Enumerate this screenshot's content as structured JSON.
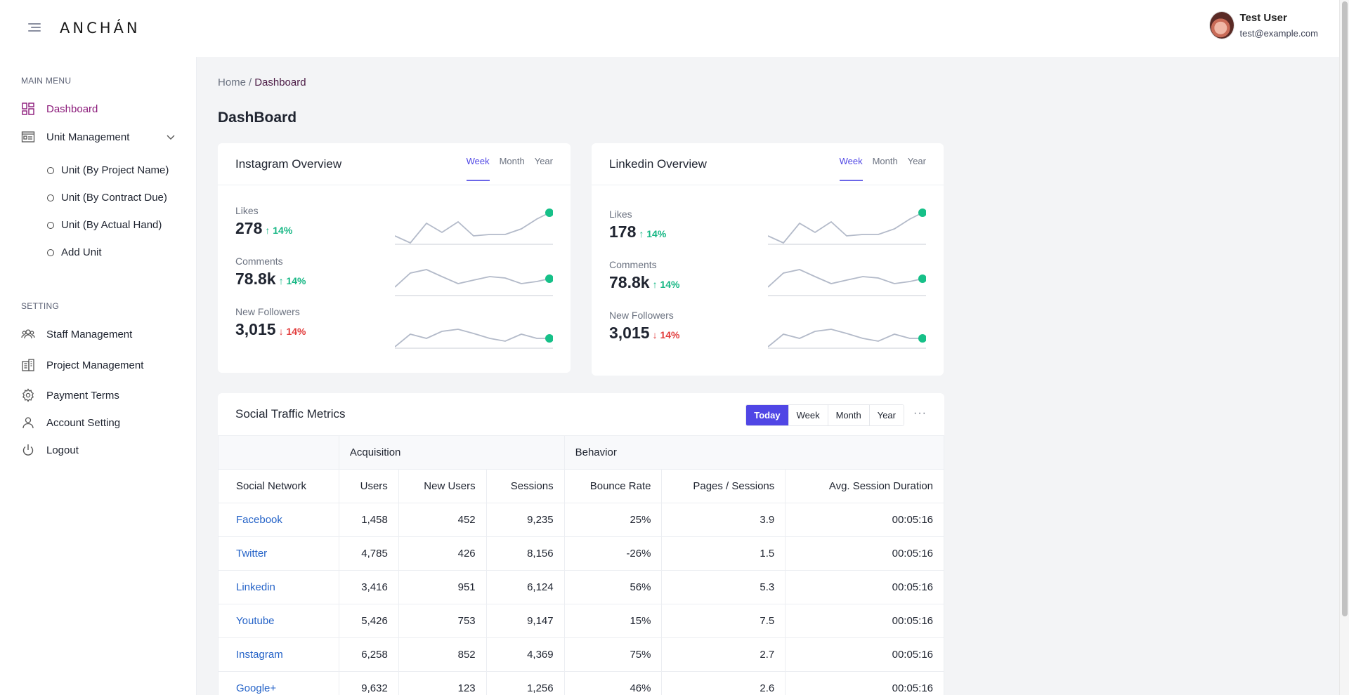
{
  "header": {
    "logo": "ANCHÁN",
    "user_name": "Test User",
    "user_email": "test@example.com"
  },
  "sidebar": {
    "main_menu_title": "MAIN MENU",
    "dashboard": "Dashboard",
    "unit_management": "Unit Management",
    "unit_sub": [
      "Unit (By Project Name)",
      "Unit (By Contract Due)",
      "Unit (By Actual Hand)",
      "Add Unit"
    ],
    "setting_title": "SETTING",
    "staff_management": "Staff Management",
    "project_management": "Project Management",
    "payment_terms": "Payment Terms",
    "account_setting": "Account Setting",
    "logout": "Logout"
  },
  "breadcrumb": {
    "home": "Home",
    "sep": "/",
    "current": "Dashboard"
  },
  "page_title": "DashBoard",
  "instagram": {
    "title": "Instagram Overview",
    "tabs": [
      "Week",
      "Month",
      "Year"
    ],
    "metrics": [
      {
        "label": "Likes",
        "value": "278",
        "dir": "up",
        "delta": "14%"
      },
      {
        "label": "Comments",
        "value": "78.8k",
        "dir": "up",
        "delta": "14%"
      },
      {
        "label": "New Followers",
        "value": "3,015",
        "dir": "down",
        "delta": "14%"
      }
    ]
  },
  "linkedin": {
    "title": "Linkedin Overview",
    "tabs": [
      "Week",
      "Month",
      "Year"
    ],
    "metrics": [
      {
        "label": "Likes",
        "value": "178",
        "dir": "up",
        "delta": "14%"
      },
      {
        "label": "Comments",
        "value": "78.8k",
        "dir": "up",
        "delta": "14%"
      },
      {
        "label": "New Followers",
        "value": "3,015",
        "dir": "down",
        "delta": "14%"
      }
    ]
  },
  "traffic": {
    "title": "Social Traffic Metrics",
    "tabs": [
      "Today",
      "Week",
      "Month",
      "Year"
    ],
    "more": "···",
    "group_headers": [
      "",
      "Acquisition",
      "Behavior"
    ],
    "columns": [
      "Social Network",
      "Users",
      "New Users",
      "Sessions",
      "Bounce Rate",
      "Pages / Sessions",
      "Avg. Session Duration"
    ],
    "rows": [
      [
        "Facebook",
        "1,458",
        "452",
        "9,235",
        "25%",
        "3.9",
        "00:05:16"
      ],
      [
        "Twitter",
        "4,785",
        "426",
        "8,156",
        "-26%",
        "1.5",
        "00:05:16"
      ],
      [
        "Linkedin",
        "3,416",
        "951",
        "6,124",
        "56%",
        "5.3",
        "00:05:16"
      ],
      [
        "Youtube",
        "5,426",
        "753",
        "9,147",
        "15%",
        "7.5",
        "00:05:16"
      ],
      [
        "Instagram",
        "6,258",
        "852",
        "4,369",
        "75%",
        "2.7",
        "00:05:16"
      ],
      [
        "Google+",
        "9,632",
        "123",
        "1,256",
        "46%",
        "2.6",
        "00:05:16"
      ]
    ]
  },
  "colors": {
    "accent": "#5046e5",
    "active_nav": "#8b1a7a",
    "up": "#16b784",
    "down": "#e23d3d",
    "spark_dot": "#16c088"
  }
}
